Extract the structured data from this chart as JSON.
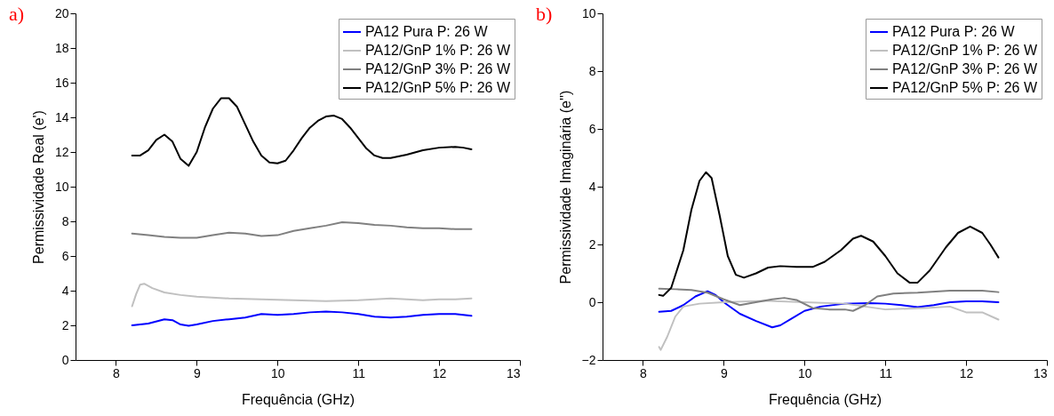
{
  "chart_data": [
    {
      "type": "line",
      "title": "a)",
      "xlabel": "Frequência (GHz)",
      "ylabel": "Permissividade Real (e')",
      "xlim": [
        7.5,
        13
      ],
      "xticks": [
        8,
        9,
        10,
        11,
        12,
        13
      ],
      "ylim": [
        0,
        20
      ],
      "yticks": [
        0,
        2,
        4,
        6,
        8,
        10,
        12,
        14,
        16,
        18,
        20
      ],
      "grid": false,
      "legend": "top right",
      "line_style": "solid",
      "marker": "none",
      "series": [
        {
          "name": "PA12 Pura P: 26 W",
          "color": "#0000ff",
          "x": [
            8.2,
            8.4,
            8.6,
            8.7,
            8.8,
            8.9,
            9.0,
            9.2,
            9.4,
            9.6,
            9.8,
            10.0,
            10.2,
            10.4,
            10.6,
            10.8,
            11.0,
            11.2,
            11.4,
            11.6,
            11.8,
            12.0,
            12.2,
            12.4
          ],
          "values": [
            2.0,
            2.1,
            2.35,
            2.3,
            2.05,
            1.98,
            2.05,
            2.25,
            2.35,
            2.45,
            2.65,
            2.6,
            2.65,
            2.75,
            2.8,
            2.75,
            2.65,
            2.5,
            2.45,
            2.5,
            2.6,
            2.65,
            2.65,
            2.55
          ]
        },
        {
          "name": "PA12/GnP 1% P: 26 W",
          "color": "#c0c0c0",
          "x": [
            8.2,
            8.25,
            8.3,
            8.35,
            8.45,
            8.6,
            8.8,
            9.0,
            9.4,
            9.8,
            10.2,
            10.6,
            11.0,
            11.4,
            11.8,
            12.0,
            12.2,
            12.4
          ],
          "values": [
            3.1,
            3.8,
            4.35,
            4.4,
            4.15,
            3.9,
            3.75,
            3.65,
            3.55,
            3.5,
            3.45,
            3.4,
            3.45,
            3.55,
            3.45,
            3.5,
            3.5,
            3.55
          ]
        },
        {
          "name": "PA12/GnP 3% P: 26 W",
          "color": "#808080",
          "x": [
            8.2,
            8.4,
            8.6,
            8.8,
            9.0,
            9.2,
            9.4,
            9.6,
            9.8,
            10.0,
            10.2,
            10.4,
            10.6,
            10.8,
            11.0,
            11.2,
            11.4,
            11.6,
            11.8,
            12.0,
            12.2,
            12.4
          ],
          "values": [
            7.3,
            7.2,
            7.1,
            7.05,
            7.05,
            7.2,
            7.35,
            7.3,
            7.15,
            7.2,
            7.45,
            7.6,
            7.75,
            7.95,
            7.9,
            7.8,
            7.75,
            7.65,
            7.6,
            7.6,
            7.55,
            7.55
          ]
        },
        {
          "name": "PA12/GnP 5% P: 26 W",
          "color": "#000000",
          "x": [
            8.2,
            8.3,
            8.4,
            8.5,
            8.6,
            8.7,
            8.8,
            8.9,
            9.0,
            9.1,
            9.2,
            9.3,
            9.4,
            9.5,
            9.6,
            9.7,
            9.8,
            9.9,
            10.0,
            10.1,
            10.2,
            10.3,
            10.4,
            10.5,
            10.6,
            10.7,
            10.8,
            10.9,
            11.0,
            11.1,
            11.2,
            11.3,
            11.4,
            11.6,
            11.8,
            12.0,
            12.2,
            12.3,
            12.4
          ],
          "values": [
            11.8,
            11.8,
            12.1,
            12.7,
            13.0,
            12.6,
            11.6,
            11.2,
            12.0,
            13.4,
            14.5,
            15.1,
            15.1,
            14.6,
            13.6,
            12.6,
            11.8,
            11.4,
            11.35,
            11.5,
            12.1,
            12.8,
            13.4,
            13.8,
            14.05,
            14.1,
            13.9,
            13.4,
            12.8,
            12.2,
            11.8,
            11.65,
            11.65,
            11.85,
            12.1,
            12.25,
            12.3,
            12.25,
            12.15
          ]
        }
      ]
    },
    {
      "type": "line",
      "title": "b)",
      "xlabel": "Frequência (GHz)",
      "ylabel": "Permissividade Imaginária (e'')",
      "xlim": [
        7.5,
        13
      ],
      "xticks": [
        8,
        9,
        10,
        11,
        12,
        13
      ],
      "ylim": [
        -2,
        10
      ],
      "yticks": [
        -2,
        0,
        2,
        4,
        6,
        8,
        10
      ],
      "grid": false,
      "legend": "top right",
      "line_style": "solid",
      "marker": "none",
      "series": [
        {
          "name": "PA12 Pura P: 26 W",
          "color": "#0000ff",
          "x": [
            8.2,
            8.35,
            8.5,
            8.65,
            8.8,
            8.9,
            9.0,
            9.2,
            9.4,
            9.6,
            9.7,
            9.85,
            10.0,
            10.2,
            10.5,
            10.8,
            11.0,
            11.2,
            11.4,
            11.6,
            11.8,
            12.0,
            12.2,
            12.4
          ],
          "values": [
            -0.33,
            -0.3,
            -0.1,
            0.2,
            0.38,
            0.25,
            0.0,
            -0.4,
            -0.65,
            -0.87,
            -0.8,
            -0.55,
            -0.3,
            -0.15,
            -0.05,
            -0.03,
            -0.05,
            -0.1,
            -0.17,
            -0.1,
            0.0,
            0.03,
            0.03,
            0.0
          ]
        },
        {
          "name": "PA12/GnP 1% P: 26 W",
          "color": "#c0c0c0",
          "x": [
            8.2,
            8.22,
            8.3,
            8.4,
            8.5,
            8.7,
            9.0,
            9.5,
            10.0,
            10.5,
            11.0,
            11.5,
            11.8,
            12.0,
            12.2,
            12.4
          ],
          "values": [
            -1.55,
            -1.65,
            -1.2,
            -0.5,
            -0.15,
            -0.05,
            0.0,
            0.05,
            0.0,
            -0.05,
            -0.25,
            -0.2,
            -0.15,
            -0.35,
            -0.35,
            -0.6
          ]
        },
        {
          "name": "PA12/GnP 3% P: 26 W",
          "color": "#808080",
          "x": [
            8.2,
            8.4,
            8.6,
            8.8,
            9.0,
            9.2,
            9.35,
            9.6,
            9.75,
            9.9,
            10.1,
            10.3,
            10.5,
            10.6,
            10.75,
            10.9,
            11.1,
            11.4,
            11.8,
            12.0,
            12.2,
            12.4
          ],
          "values": [
            0.47,
            0.45,
            0.42,
            0.33,
            0.1,
            -0.1,
            -0.02,
            0.1,
            0.15,
            0.08,
            -0.2,
            -0.25,
            -0.25,
            -0.3,
            -0.1,
            0.2,
            0.3,
            0.33,
            0.4,
            0.4,
            0.4,
            0.35
          ]
        },
        {
          "name": "PA12/GnP 5% P: 26 W",
          "color": "#000000",
          "x": [
            8.2,
            8.25,
            8.35,
            8.5,
            8.6,
            8.7,
            8.78,
            8.85,
            8.95,
            9.05,
            9.15,
            9.25,
            9.4,
            9.55,
            9.7,
            9.9,
            10.1,
            10.25,
            10.45,
            10.6,
            10.7,
            10.85,
            11.0,
            11.15,
            11.3,
            11.4,
            11.55,
            11.75,
            11.9,
            12.05,
            12.2,
            12.3,
            12.4
          ],
          "values": [
            0.25,
            0.22,
            0.5,
            1.8,
            3.2,
            4.2,
            4.5,
            4.3,
            3.0,
            1.6,
            0.95,
            0.85,
            1.0,
            1.2,
            1.25,
            1.22,
            1.22,
            1.4,
            1.8,
            2.2,
            2.3,
            2.1,
            1.6,
            1.0,
            0.68,
            0.68,
            1.1,
            1.9,
            2.4,
            2.62,
            2.4,
            2.0,
            1.55
          ]
        }
      ]
    }
  ]
}
